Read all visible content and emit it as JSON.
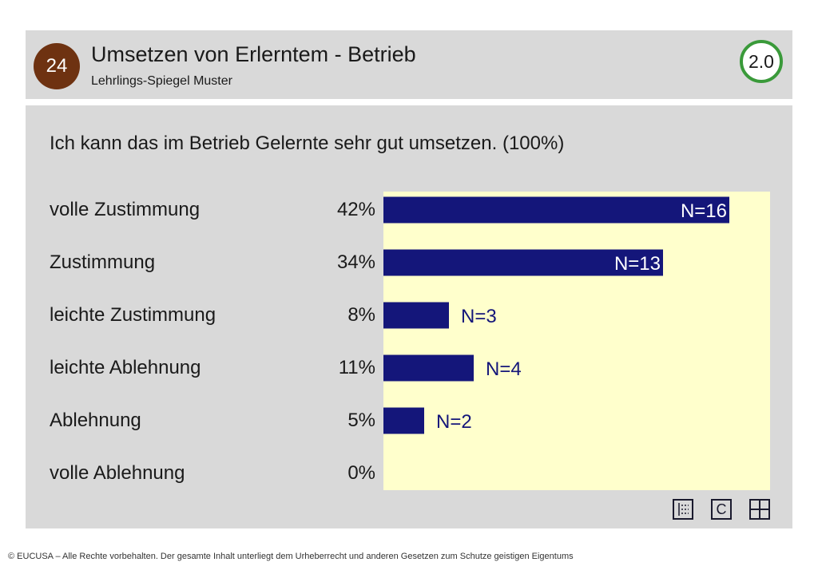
{
  "header": {
    "slide_number": "24",
    "title": "Umsetzen von Erlerntem - Betrieb",
    "subtitle": "Lehrlings-Spiegel Muster",
    "version": "2.0"
  },
  "chart_data": {
    "type": "bar",
    "orientation": "horizontal",
    "title": "Ich kann das im Betrieb Gelernte sehr gut umsetzen. (100%)",
    "categories": [
      "volle Zustimmung",
      "Zustimmung",
      "leichte Zustimmung",
      "leichte Ablehnung",
      "Ablehnung",
      "volle Ablehnung"
    ],
    "percent_labels": [
      "42%",
      "34%",
      "8%",
      "11%",
      "5%",
      "0%"
    ],
    "values": [
      42,
      34,
      8,
      11,
      5,
      0
    ],
    "n_labels": [
      "N=16",
      "N=13",
      "N=3",
      "N=4",
      "N=2",
      ""
    ],
    "xlim": [
      0,
      47
    ],
    "grid": false,
    "colors": {
      "bar": "#14167a",
      "plot_background": "#ffffcc",
      "label_on_bar": "#ffffff",
      "label_outside": "#14167a"
    }
  },
  "toolbar": {
    "icons": [
      "list-icon",
      "copyright-icon",
      "grid-icon"
    ],
    "copyright_letter": "C"
  },
  "footer": {
    "text": "© EUCUSA – Alle Rechte vorbehalten. Der gesamte Inhalt unterliegt dem Urheberrecht und anderen Gesetzen zum Schutze geistigen Eigentums"
  }
}
